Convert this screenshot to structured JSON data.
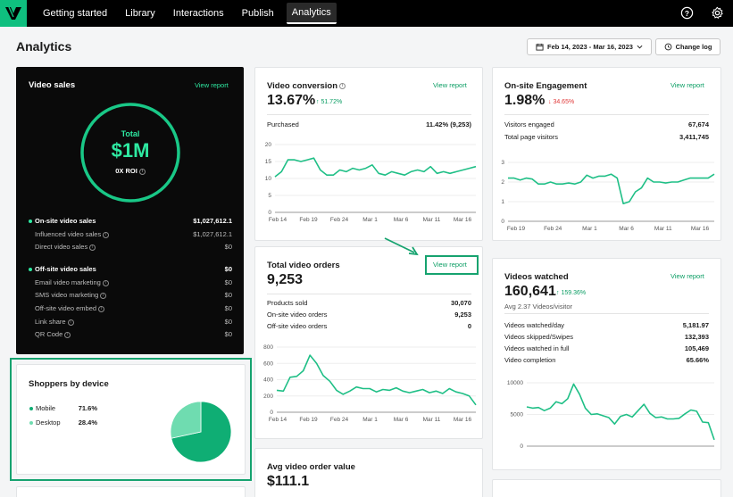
{
  "nav": {
    "items": [
      {
        "label": "Getting started"
      },
      {
        "label": "Library"
      },
      {
        "label": "Interactions"
      },
      {
        "label": "Publish"
      },
      {
        "label": "Analytics"
      }
    ]
  },
  "page": {
    "title": "Analytics",
    "date_range": "Feb 14, 2023 - Mar 16, 2023",
    "change_log": "Change log"
  },
  "colors": {
    "accent": "#0fbf7f",
    "line": "#1fbf86",
    "down": "#e03a3a"
  },
  "video_sales": {
    "title": "Video sales",
    "view_report": "View report",
    "ring_label": "Total",
    "ring_value": "$1M",
    "roi": "0X ROI",
    "rows": [
      {
        "label": "On-site video sales",
        "value": "$1,027,612.1"
      },
      {
        "label": "Influenced video sales",
        "value": "$1,027,612.1"
      },
      {
        "label": "Direct video sales",
        "value": "$0"
      },
      {
        "label": "Off-site video sales",
        "value": "$0"
      },
      {
        "label": "Email video marketing",
        "value": "$0"
      },
      {
        "label": "SMS video marketing",
        "value": "$0"
      },
      {
        "label": "Off-site video embed",
        "value": "$0"
      },
      {
        "label": "Link share",
        "value": "$0"
      },
      {
        "label": "QR Code",
        "value": "$0"
      }
    ]
  },
  "shoppers": {
    "title": "Shoppers by device",
    "items": [
      {
        "label": "Mobile",
        "value": "71.6%"
      },
      {
        "label": "Desktop",
        "value": "28.4%"
      }
    ],
    "chart_data": {
      "type": "pie",
      "labels": [
        "Mobile",
        "Desktop"
      ],
      "values": [
        71.6,
        28.4
      ]
    }
  },
  "video_conversion": {
    "title": "Video conversion",
    "value": "13.67%",
    "delta": "51.72%",
    "view_report": "View report",
    "rows": [
      {
        "label": "Purchased",
        "value": "11.42% (9,253)"
      }
    ],
    "chart_data": {
      "type": "line",
      "x_ticks": [
        "Feb 14",
        "Feb 19",
        "Feb 24",
        "Mar 1",
        "Mar 6",
        "Mar 11",
        "Mar 16"
      ],
      "y_ticks": [
        "20",
        "15",
        "10",
        "5",
        "0"
      ],
      "ylim": [
        0,
        20
      ],
      "values": [
        10.5,
        12,
        15.5,
        15.5,
        15,
        15.5,
        16,
        12.5,
        11,
        11,
        12.5,
        12,
        13,
        12.5,
        13,
        14,
        11.5,
        11,
        12,
        11.5,
        11,
        12,
        12.5,
        12,
        13.5,
        11.5,
        12,
        11.5,
        12,
        12.5,
        13,
        13.5
      ]
    }
  },
  "engagement": {
    "title": "On-site Engagement",
    "value": "1.98%",
    "delta": "34.65%",
    "view_report": "View report",
    "rows": [
      {
        "label": "Visitors engaged",
        "value": "67,674"
      },
      {
        "label": "Total page visitors",
        "value": "3,411,745"
      }
    ],
    "chart_data": {
      "type": "line",
      "x_ticks": [
        "Feb 19",
        "Feb 24",
        "Mar 1",
        "Mar 6",
        "Mar 11",
        "Mar 16"
      ],
      "y_ticks": [
        "3",
        "2",
        "1",
        "0"
      ],
      "ylim": [
        0,
        3
      ],
      "values": [
        2.2,
        2.2,
        2.1,
        2.2,
        2.15,
        1.9,
        1.9,
        2.0,
        1.9,
        1.9,
        1.95,
        1.9,
        2.0,
        2.35,
        2.2,
        2.3,
        2.3,
        2.4,
        2.2,
        0.9,
        1.0,
        1.5,
        1.7,
        2.2,
        2.0,
        2.0,
        1.95,
        2.0,
        2.0,
        2.1,
        2.2,
        2.2,
        2.2,
        2.2,
        2.4
      ]
    }
  },
  "total_orders": {
    "title": "Total video orders",
    "value": "9,253",
    "view_report": "View report",
    "rows": [
      {
        "label": "Products sold",
        "value": "30,070"
      },
      {
        "label": "On-site video orders",
        "value": "9,253"
      },
      {
        "label": "Off-site video orders",
        "value": "0"
      }
    ],
    "chart_data": {
      "type": "line",
      "x_ticks": [
        "Feb 14",
        "Feb 19",
        "Feb 24",
        "Mar 1",
        "Mar 6",
        "Mar 11",
        "Mar 16"
      ],
      "y_ticks": [
        "800",
        "600",
        "400",
        "200",
        "0"
      ],
      "ylim": [
        0,
        800
      ],
      "values": [
        270,
        260,
        430,
        440,
        510,
        700,
        600,
        450,
        380,
        270,
        220,
        260,
        310,
        290,
        290,
        250,
        280,
        270,
        300,
        260,
        240,
        260,
        280,
        240,
        260,
        230,
        290,
        250,
        230,
        200,
        90
      ]
    }
  },
  "avg_order": {
    "title": "Avg video order value",
    "value": "$111.1"
  },
  "videos_watched": {
    "title": "Videos watched",
    "value": "160,641",
    "delta": "159.36%",
    "sub": "Avg 2.37 Videos/visitor",
    "view_report": "View report",
    "rows": [
      {
        "label": "Videos watched/day",
        "value": "5,181.97"
      },
      {
        "label": "Videos skipped/Swipes",
        "value": "132,393"
      },
      {
        "label": "Videos watched in full",
        "value": "105,469"
      },
      {
        "label": "Video completion",
        "value": "65.66%"
      }
    ],
    "chart_data": {
      "type": "line",
      "y_ticks": [
        "10000",
        "5000",
        "0"
      ],
      "ylim": [
        0,
        10000
      ],
      "values": [
        6200,
        6000,
        6100,
        5600,
        6000,
        7000,
        6700,
        7500,
        9800,
        8200,
        6000,
        5000,
        5100,
        4800,
        4500,
        3500,
        4700,
        5000,
        4600,
        5600,
        6600,
        5200,
        4500,
        4600,
        4300,
        4300,
        4400,
        5100,
        5700,
        5500,
        3800,
        3700,
        1000
      ]
    }
  }
}
